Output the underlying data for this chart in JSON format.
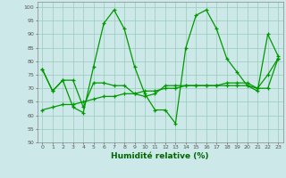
{
  "xlabel": "Humidité relative (%)",
  "background_color": "#cce8e8",
  "grid_color": "#99ccbb",
  "line_color": "#009900",
  "xlim": [
    -0.5,
    23.5
  ],
  "ylim": [
    50,
    102
  ],
  "yticks": [
    50,
    55,
    60,
    65,
    70,
    75,
    80,
    85,
    90,
    95,
    100
  ],
  "xticks": [
    0,
    1,
    2,
    3,
    4,
    5,
    6,
    7,
    8,
    9,
    10,
    11,
    12,
    13,
    14,
    15,
    16,
    17,
    18,
    19,
    20,
    21,
    22,
    23
  ],
  "series1": [
    77,
    69,
    73,
    63,
    61,
    78,
    94,
    99,
    92,
    78,
    68,
    62,
    62,
    57,
    85,
    97,
    99,
    92,
    81,
    76,
    71,
    69,
    90,
    82
  ],
  "series2": [
    77,
    69,
    73,
    73,
    63,
    72,
    72,
    71,
    71,
    68,
    67,
    68,
    71,
    71,
    71,
    71,
    71,
    71,
    71,
    71,
    71,
    70,
    75,
    81
  ],
  "series3": [
    62,
    63,
    64,
    64,
    65,
    66,
    67,
    67,
    68,
    68,
    69,
    69,
    70,
    70,
    71,
    71,
    71,
    71,
    72,
    72,
    72,
    70,
    70,
    81
  ]
}
